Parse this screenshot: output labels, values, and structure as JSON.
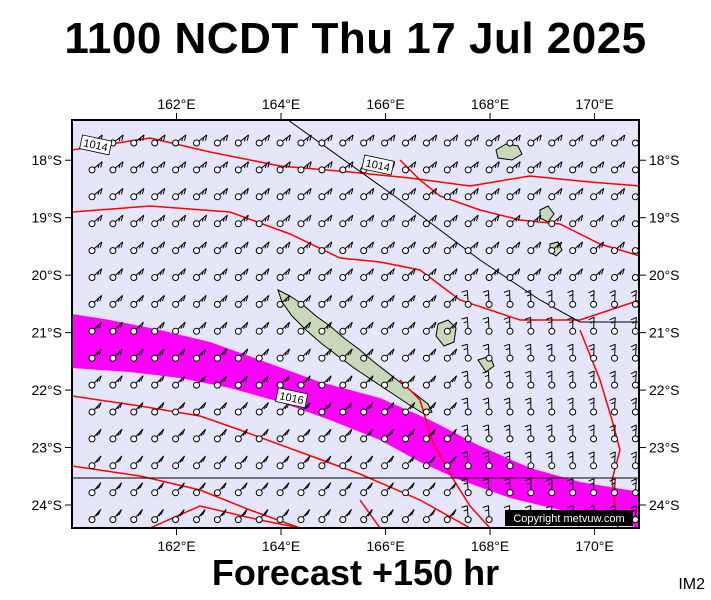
{
  "header": {
    "title": "1100 NCDT Thu 17 Jul 2025"
  },
  "footer": {
    "forecast": "Forecast +150 hr",
    "code": "IM2"
  },
  "map": {
    "lon_range": [
      160.0,
      170.85
    ],
    "lat_range": [
      -24.4,
      -17.3
    ],
    "lon_ticks": [
      "162°E",
      "164°E",
      "166°E",
      "168°E",
      "170°E"
    ],
    "lon_tick_values": [
      162,
      164,
      166,
      168,
      170
    ],
    "lat_ticks": [
      "18°S",
      "19°S",
      "20°S",
      "21°S",
      "22°S",
      "23°S",
      "24°S"
    ],
    "lat_tick_values": [
      -18,
      -19,
      -20,
      -21,
      -22,
      -23,
      -24
    ],
    "isobar_labels": [
      {
        "text": "1014",
        "lon": 160.45,
        "lat": -17.75
      },
      {
        "text": "1014",
        "lon": 165.85,
        "lat": -18.1
      },
      {
        "text": "1016",
        "lon": 164.2,
        "lat": -22.15
      }
    ],
    "copyright": "Copyright metvuw.com",
    "colors": {
      "ocean": "#e6e6fa",
      "isobar": "#ff0000",
      "rain": "#ff00ff",
      "land": "#c8d8b8"
    }
  }
}
